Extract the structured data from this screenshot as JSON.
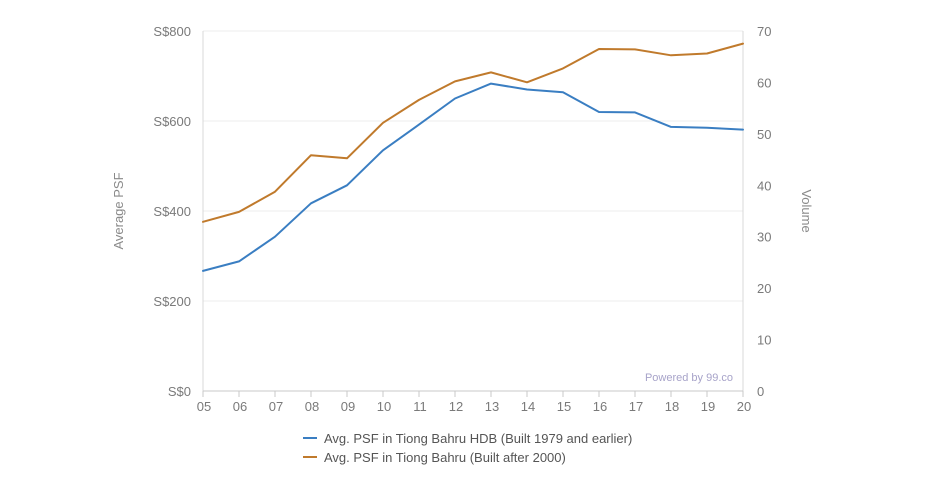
{
  "chart_data": {
    "type": "line",
    "categories": [
      "05",
      "06",
      "07",
      "08",
      "09",
      "10",
      "11",
      "12",
      "13",
      "14",
      "15",
      "16",
      "17",
      "18",
      "19",
      "20"
    ],
    "series": [
      {
        "name": "Avg. PSF in Tiong Bahru HDB (Built 1979 and earlier)",
        "color": "#3a7ec2",
        "values": [
          267,
          288,
          343,
          417,
          457,
          535,
          592,
          650,
          683,
          670,
          664,
          620,
          619,
          587,
          585,
          581
        ]
      },
      {
        "name": "Avg. PSF in Tiong Bahru (Built after 2000)",
        "color": "#c07a2c",
        "values": [
          376,
          398,
          443,
          524,
          517,
          596,
          647,
          688,
          708,
          686,
          717,
          760,
          759,
          746,
          750,
          772
        ]
      }
    ],
    "y_left": {
      "label": "Average PSF",
      "range": [
        0,
        800
      ],
      "ticks": [
        "S$0",
        "S$200",
        "S$400",
        "S$600",
        "S$800"
      ]
    },
    "y_right": {
      "label": "Volume",
      "range": [
        0,
        70
      ],
      "ticks": [
        "0",
        "10",
        "20",
        "30",
        "40",
        "50",
        "60",
        "70"
      ]
    },
    "credit": "Powered by 99.co",
    "grid": true,
    "legend_position": "bottom"
  }
}
